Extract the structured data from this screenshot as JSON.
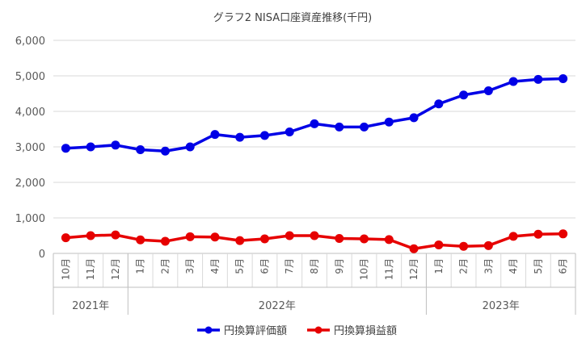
{
  "chart_data": {
    "type": "line",
    "title": "グラフ2 NISA口座資産推移(千円)",
    "categories": [
      "10月",
      "11月",
      "12月",
      "1月",
      "2月",
      "3月",
      "4月",
      "5月",
      "6月",
      "7月",
      "8月",
      "9月",
      "10月",
      "11月",
      "12月",
      "1月",
      "2月",
      "3月",
      "4月",
      "5月",
      "6月"
    ],
    "year_groups": [
      {
        "label": "2021年",
        "count": 3
      },
      {
        "label": "2022年",
        "count": 12
      },
      {
        "label": "2023年",
        "count": 6
      }
    ],
    "ylim": [
      0,
      6000
    ],
    "yticks": [
      "0",
      "1,000",
      "2,000",
      "3,000",
      "4,000",
      "5,000",
      "6,000"
    ],
    "series": [
      {
        "name": "円換算評価額",
        "color": "#0000E6",
        "values": [
          2960,
          3000,
          3050,
          2920,
          2880,
          3000,
          3350,
          3270,
          3320,
          3420,
          3650,
          3560,
          3560,
          3700,
          3820,
          4210,
          4460,
          4580,
          4840,
          4900,
          4920
        ]
      },
      {
        "name": "円換算損益額",
        "color": "#E60000",
        "values": [
          440,
          500,
          520,
          380,
          340,
          470,
          460,
          360,
          410,
          500,
          500,
          420,
          410,
          390,
          130,
          240,
          200,
          220,
          480,
          540,
          550
        ]
      }
    ],
    "grid": true,
    "legend": "bottom"
  }
}
